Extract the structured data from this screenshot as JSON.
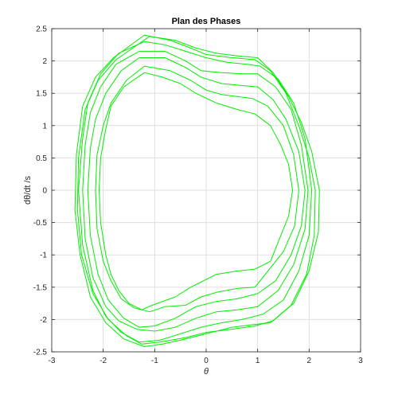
{
  "chart_data": {
    "type": "line",
    "title": "Plan des Phases",
    "xlabel": "θ",
    "ylabel": "dθ/dt /s",
    "xlim": [
      -3,
      3
    ],
    "ylim": [
      -2.5,
      2.5
    ],
    "xticks": [
      "-3",
      "-2",
      "-1",
      "0",
      "1",
      "2",
      "3"
    ],
    "yticks": [
      "2.5",
      "2",
      "1.5",
      "1",
      "0.5",
      "0",
      "-0.5",
      "-1",
      "-1.5",
      "-2",
      "-2.5"
    ],
    "grid": true,
    "line_color": "#00ee00",
    "series": [
      {
        "values": [
          [
            -1.2,
            1.82
          ],
          [
            -0.85,
            1.75
          ],
          [
            -0.5,
            1.65
          ],
          [
            -0.2,
            1.5
          ],
          [
            0.2,
            1.35
          ],
          [
            0.6,
            1.25
          ],
          [
            0.95,
            1.18
          ],
          [
            1.25,
            1.0
          ],
          [
            1.45,
            0.7
          ],
          [
            1.6,
            0.4
          ],
          [
            1.68,
            0.0
          ],
          [
            1.6,
            -0.4
          ],
          [
            1.45,
            -0.7
          ],
          [
            1.25,
            -1.1
          ],
          [
            0.95,
            -1.22
          ],
          [
            0.6,
            -1.25
          ],
          [
            0.2,
            -1.3
          ],
          [
            0.0,
            -1.38
          ],
          [
            -0.3,
            -1.5
          ],
          [
            -0.6,
            -1.65
          ],
          [
            -1.05,
            -1.78
          ],
          [
            -1.25,
            -1.85
          ],
          [
            -1.5,
            -1.75
          ],
          [
            -1.7,
            -1.55
          ],
          [
            -1.85,
            -1.3
          ],
          [
            -1.95,
            -1.0
          ],
          [
            -2.05,
            -0.5
          ],
          [
            -2.08,
            0.0
          ],
          [
            -2.05,
            0.5
          ],
          [
            -1.95,
            0.95
          ],
          [
            -1.85,
            1.3
          ],
          [
            -1.6,
            1.6
          ],
          [
            -1.2,
            1.82
          ]
        ]
      },
      {
        "values": [
          [
            -1.2,
            1.92
          ],
          [
            -0.7,
            1.85
          ],
          [
            -0.3,
            1.7
          ],
          [
            0.0,
            1.55
          ],
          [
            0.3,
            1.48
          ],
          [
            0.6,
            1.45
          ],
          [
            0.9,
            1.42
          ],
          [
            1.2,
            1.3
          ],
          [
            1.5,
            1.0
          ],
          [
            1.7,
            0.55
          ],
          [
            1.8,
            0.0
          ],
          [
            1.72,
            -0.55
          ],
          [
            1.5,
            -0.95
          ],
          [
            1.25,
            -1.2
          ],
          [
            0.95,
            -1.5
          ],
          [
            0.6,
            -1.52
          ],
          [
            0.2,
            -1.58
          ],
          [
            -0.1,
            -1.65
          ],
          [
            -0.4,
            -1.78
          ],
          [
            -0.8,
            -1.8
          ],
          [
            -1.1,
            -1.88
          ],
          [
            -1.4,
            -1.82
          ],
          [
            -1.65,
            -1.68
          ],
          [
            -1.85,
            -1.4
          ],
          [
            -2.0,
            -1.1
          ],
          [
            -2.12,
            -0.6
          ],
          [
            -2.15,
            0.0
          ],
          [
            -2.12,
            0.55
          ],
          [
            -2.0,
            1.0
          ],
          [
            -1.85,
            1.35
          ],
          [
            -1.55,
            1.7
          ],
          [
            -1.2,
            1.92
          ]
        ]
      },
      {
        "values": [
          [
            -1.3,
            2.05
          ],
          [
            -0.8,
            2.05
          ],
          [
            -0.4,
            1.9
          ],
          [
            -0.1,
            1.75
          ],
          [
            0.3,
            1.65
          ],
          [
            0.7,
            1.62
          ],
          [
            1.0,
            1.6
          ],
          [
            1.3,
            1.4
          ],
          [
            1.55,
            1.1
          ],
          [
            1.8,
            0.6
          ],
          [
            1.92,
            0.0
          ],
          [
            1.85,
            -0.55
          ],
          [
            1.65,
            -1.0
          ],
          [
            1.35,
            -1.4
          ],
          [
            1.0,
            -1.6
          ],
          [
            0.6,
            -1.68
          ],
          [
            0.2,
            -1.72
          ],
          [
            -0.2,
            -1.8
          ],
          [
            -0.6,
            -1.98
          ],
          [
            -1.0,
            -2.1
          ],
          [
            -1.3,
            -2.12
          ],
          [
            -1.6,
            -1.98
          ],
          [
            -1.9,
            -1.7
          ],
          [
            -2.1,
            -1.3
          ],
          [
            -2.25,
            -0.7
          ],
          [
            -2.3,
            0.0
          ],
          [
            -2.25,
            0.65
          ],
          [
            -2.15,
            1.1
          ],
          [
            -1.95,
            1.5
          ],
          [
            -1.65,
            1.85
          ],
          [
            -1.3,
            2.05
          ]
        ]
      },
      {
        "values": [
          [
            -1.3,
            2.15
          ],
          [
            -0.8,
            2.15
          ],
          [
            -0.4,
            2.0
          ],
          [
            -0.1,
            1.85
          ],
          [
            0.3,
            1.82
          ],
          [
            0.7,
            1.8
          ],
          [
            1.0,
            1.8
          ],
          [
            1.35,
            1.6
          ],
          [
            1.65,
            1.25
          ],
          [
            1.85,
            0.7
          ],
          [
            1.98,
            0.0
          ],
          [
            1.92,
            -0.6
          ],
          [
            1.7,
            -1.15
          ],
          [
            1.4,
            -1.55
          ],
          [
            1.0,
            -1.8
          ],
          [
            0.6,
            -1.85
          ],
          [
            0.2,
            -1.88
          ],
          [
            -0.2,
            -1.98
          ],
          [
            -0.6,
            -2.12
          ],
          [
            -1.0,
            -2.18
          ],
          [
            -1.35,
            -2.15
          ],
          [
            -1.7,
            -2.02
          ],
          [
            -1.95,
            -1.8
          ],
          [
            -2.2,
            -1.35
          ],
          [
            -2.35,
            -0.75
          ],
          [
            -2.4,
            0.0
          ],
          [
            -2.35,
            0.7
          ],
          [
            -2.25,
            1.2
          ],
          [
            -2.05,
            1.6
          ],
          [
            -1.75,
            1.95
          ],
          [
            -1.3,
            2.15
          ]
        ]
      },
      {
        "values": [
          [
            -1.2,
            2.3
          ],
          [
            -0.8,
            2.25
          ],
          [
            -0.4,
            2.15
          ],
          [
            0.0,
            2.05
          ],
          [
            0.4,
            1.98
          ],
          [
            0.8,
            1.95
          ],
          [
            1.05,
            1.92
          ],
          [
            1.4,
            1.72
          ],
          [
            1.7,
            1.35
          ],
          [
            1.92,
            0.8
          ],
          [
            2.05,
            0.0
          ],
          [
            2.0,
            -0.7
          ],
          [
            1.8,
            -1.25
          ],
          [
            1.5,
            -1.7
          ],
          [
            1.1,
            -1.92
          ],
          [
            0.7,
            -2.0
          ],
          [
            0.3,
            -2.05
          ],
          [
            -0.1,
            -2.12
          ],
          [
            -0.5,
            -2.22
          ],
          [
            -0.9,
            -2.32
          ],
          [
            -1.3,
            -2.35
          ],
          [
            -1.65,
            -2.2
          ],
          [
            -1.95,
            -1.95
          ],
          [
            -2.2,
            -1.55
          ],
          [
            -2.4,
            -0.85
          ],
          [
            -2.48,
            0.0
          ],
          [
            -2.4,
            0.8
          ],
          [
            -2.3,
            1.35
          ],
          [
            -2.05,
            1.8
          ],
          [
            -1.7,
            2.12
          ],
          [
            -1.2,
            2.3
          ]
        ]
      },
      {
        "values": [
          [
            -1.2,
            2.4
          ],
          [
            -0.7,
            2.32
          ],
          [
            -0.3,
            2.2
          ],
          [
            0.0,
            2.1
          ],
          [
            0.5,
            2.05
          ],
          [
            0.95,
            2.02
          ],
          [
            1.25,
            1.85
          ],
          [
            1.55,
            1.5
          ],
          [
            1.8,
            1.0
          ],
          [
            2.0,
            0.5
          ],
          [
            2.12,
            0.0
          ],
          [
            2.1,
            -0.7
          ],
          [
            1.95,
            -1.3
          ],
          [
            1.65,
            -1.78
          ],
          [
            1.25,
            -2.05
          ],
          [
            0.9,
            -2.08
          ],
          [
            0.5,
            -2.12
          ],
          [
            0.0,
            -2.22
          ],
          [
            -0.5,
            -2.32
          ],
          [
            -0.85,
            -2.38
          ],
          [
            -1.2,
            -2.42
          ],
          [
            -1.6,
            -2.3
          ],
          [
            -1.95,
            -2.05
          ],
          [
            -2.25,
            -1.65
          ],
          [
            -2.45,
            -1.0
          ],
          [
            -2.55,
            -0.3
          ],
          [
            -2.52,
            0.55
          ],
          [
            -2.4,
            1.3
          ],
          [
            -2.15,
            1.75
          ],
          [
            -1.8,
            2.05
          ],
          [
            -1.2,
            2.4
          ]
        ]
      },
      {
        "values": [
          [
            -1.1,
            2.38
          ],
          [
            -0.6,
            2.32
          ],
          [
            -0.2,
            2.2
          ],
          [
            0.2,
            2.12
          ],
          [
            0.6,
            2.08
          ],
          [
            1.0,
            2.05
          ],
          [
            1.3,
            1.82
          ],
          [
            1.6,
            1.45
          ],
          [
            1.85,
            1.05
          ],
          [
            2.05,
            0.6
          ],
          [
            2.2,
            0.0
          ],
          [
            2.18,
            -0.65
          ],
          [
            2.0,
            -1.25
          ],
          [
            1.7,
            -1.75
          ],
          [
            1.3,
            -2.02
          ],
          [
            0.95,
            -2.1
          ],
          [
            0.5,
            -2.15
          ],
          [
            0.0,
            -2.2
          ],
          [
            -0.4,
            -2.28
          ],
          [
            -0.9,
            -2.35
          ],
          [
            -1.25,
            -2.38
          ],
          [
            -1.55,
            -2.25
          ],
          [
            -1.9,
            -2.0
          ],
          [
            -2.2,
            -1.6
          ],
          [
            -2.42,
            -1.0
          ],
          [
            -2.5,
            -0.3
          ],
          [
            -2.48,
            0.5
          ],
          [
            -2.35,
            1.25
          ],
          [
            -2.1,
            1.7
          ],
          [
            -1.75,
            2.02
          ],
          [
            -1.1,
            2.38
          ]
        ]
      }
    ]
  }
}
